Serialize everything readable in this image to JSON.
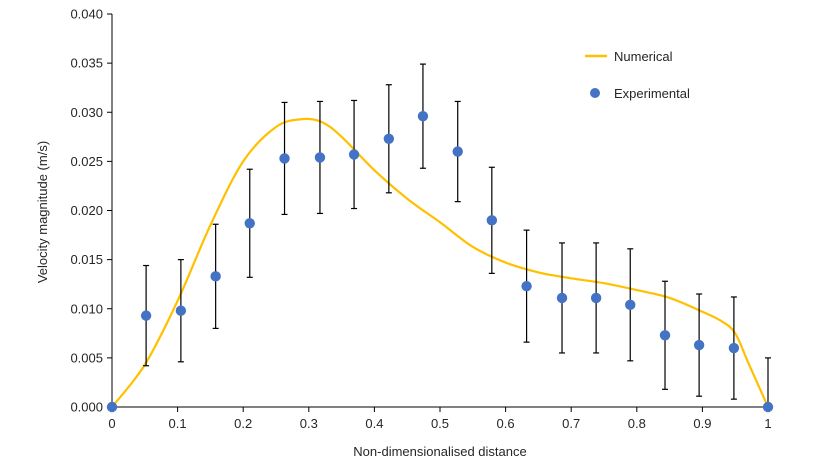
{
  "chart_data": {
    "type": "scatter",
    "title": "",
    "xlabel": "Non-dimensionalised distance",
    "ylabel": "Velocity magnitude (m/s)",
    "xlim": [
      0,
      1
    ],
    "ylim": [
      0,
      0.04
    ],
    "xticks": [
      "0",
      "0.1",
      "0.2",
      "0.3",
      "0.4",
      "0.5",
      "0.6",
      "0.7",
      "0.8",
      "0.9",
      "1"
    ],
    "yticks": [
      "0.000",
      "0.005",
      "0.010",
      "0.015",
      "0.020",
      "0.025",
      "0.030",
      "0.035",
      "0.040"
    ],
    "grid": false,
    "legend_position": "top-right",
    "colors": {
      "numerical": "#FFC000",
      "experimental": "#4472C4",
      "error_bar": "#000000"
    },
    "series": [
      {
        "name": "Numerical",
        "kind": "line",
        "x": [
          0,
          0.05,
          0.1,
          0.15,
          0.2,
          0.25,
          0.29,
          0.32,
          0.35,
          0.4,
          0.45,
          0.5,
          0.55,
          0.6,
          0.65,
          0.7,
          0.75,
          0.8,
          0.85,
          0.9,
          0.93,
          0.95,
          0.97,
          1
        ],
        "y": [
          0,
          0.0043,
          0.0108,
          0.0185,
          0.025,
          0.0285,
          0.0293,
          0.029,
          0.0275,
          0.0241,
          0.0212,
          0.0188,
          0.0163,
          0.0147,
          0.0137,
          0.0131,
          0.0126,
          0.0119,
          0.0111,
          0.0097,
          0.0087,
          0.0075,
          0.0045,
          0
        ]
      },
      {
        "name": "Experimental",
        "kind": "scatter",
        "x": [
          0,
          0.052,
          0.105,
          0.158,
          0.21,
          0.263,
          0.317,
          0.369,
          0.422,
          0.474,
          0.527,
          0.579,
          0.632,
          0.686,
          0.738,
          0.79,
          0.843,
          0.895,
          0.948,
          1
        ],
        "y": [
          0,
          0.0093,
          0.0098,
          0.0133,
          0.0187,
          0.0253,
          0.0254,
          0.0257,
          0.0273,
          0.0296,
          0.026,
          0.019,
          0.0123,
          0.0111,
          0.0111,
          0.0104,
          0.0073,
          0.0063,
          0.006,
          0
        ],
        "error": [
          null,
          0.0051,
          0.0052,
          0.0053,
          0.0055,
          0.0057,
          0.0057,
          0.0055,
          0.0055,
          0.0053,
          0.0051,
          0.0054,
          0.0057,
          0.0056,
          0.0056,
          0.0057,
          0.0055,
          0.0052,
          0.0052,
          0.005
        ]
      }
    ]
  }
}
